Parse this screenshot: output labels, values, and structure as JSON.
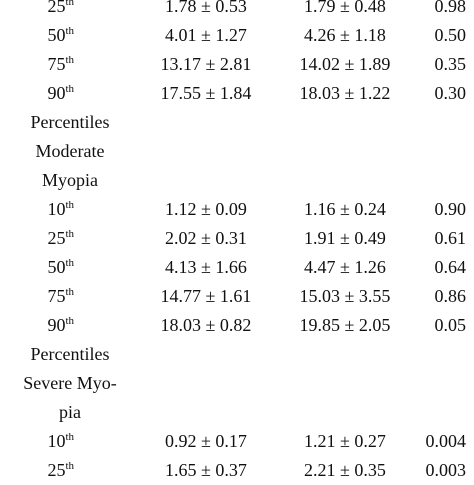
{
  "blocks": [
    {
      "rows": [
        {
          "pct": "25",
          "sup": "th",
          "a": "1.78 ± 0.53",
          "b": "1.79 ± 0.48",
          "p": "0.98"
        },
        {
          "pct": "50",
          "sup": "th",
          "a": "4.01 ± 1.27",
          "b": "4.26 ± 1.18",
          "p": "0.50"
        },
        {
          "pct": "75",
          "sup": "th",
          "a": "13.17 ± 2.81",
          "b": "14.02 ± 1.89",
          "p": "0.35"
        },
        {
          "pct": "90",
          "sup": "th",
          "a": "17.55 ± 1.84",
          "b": "18.03 ± 1.22",
          "p": "0.30"
        }
      ]
    },
    {
      "label_lines": [
        "Percentiles",
        "Moderate",
        "Myopia"
      ],
      "rows": [
        {
          "pct": "10",
          "sup": "th",
          "a": "1.12 ± 0.09",
          "b": "1.16 ± 0.24",
          "p": "0.90"
        },
        {
          "pct": "25",
          "sup": "th",
          "a": "2.02 ± 0.31",
          "b": "1.91 ± 0.49",
          "p": "0.61"
        },
        {
          "pct": "50",
          "sup": "th",
          "a": "4.13 ± 1.66",
          "b": "4.47 ± 1.26",
          "p": "0.64"
        },
        {
          "pct": "75",
          "sup": "th",
          "a": "14.77 ± 1.61",
          "b": "15.03 ± 3.55",
          "p": "0.86"
        },
        {
          "pct": "90",
          "sup": "th",
          "a": "18.03 ± 0.82",
          "b": "19.85 ± 2.05",
          "p": "0.05"
        }
      ]
    },
    {
      "label_lines": [
        "Percentiles",
        "Severe Myo-",
        "pia"
      ],
      "rows": [
        {
          "pct": "10",
          "sup": "th",
          "a": "0.92 ± 0.17",
          "b": "1.21 ± 0.27",
          "p": "0.004"
        },
        {
          "pct": "25",
          "sup": "th",
          "a": "1.65 ± 0.37",
          "b": "2.21 ± 0.35",
          "p": "0.003"
        }
      ]
    }
  ]
}
